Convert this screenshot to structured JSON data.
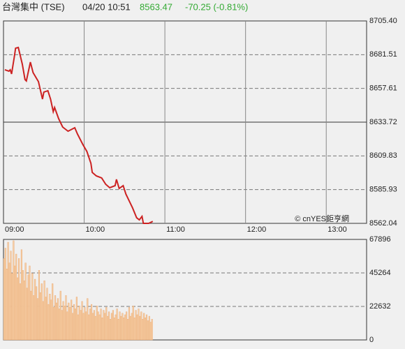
{
  "header": {
    "name": "台灣集中 (TSE)",
    "time": "04/20 10:51",
    "price": "8563.47",
    "change": "-70.25 (-0.81%)"
  },
  "watermark": "© cnYES鉅亨網",
  "chart_data": [
    {
      "type": "line",
      "color": "#cc2222",
      "reference": 8633.72,
      "xlim": [
        0,
        270
      ],
      "xticks": [
        {
          "value": 0,
          "label": "09:00"
        },
        {
          "value": 60,
          "label": "10:00"
        },
        {
          "value": 120,
          "label": "11:00"
        },
        {
          "value": 180,
          "label": "12:00"
        },
        {
          "value": 240,
          "label": "13:00"
        }
      ],
      "ylim": [
        8562.04,
        8705.4
      ],
      "yticks": [
        8562.04,
        8585.93,
        8609.83,
        8633.72,
        8657.61,
        8681.51,
        {
          "value": 8705.4,
          "label": "8705.40"
        }
      ],
      "x": [
        1,
        4,
        5,
        6,
        8,
        9,
        11,
        14,
        16,
        17,
        20,
        22,
        26,
        29,
        30,
        33,
        35,
        37,
        38,
        41,
        44,
        48,
        51,
        53,
        55,
        59,
        62,
        65,
        66,
        69,
        73,
        76,
        79,
        83,
        84,
        86,
        89,
        91,
        94,
        96,
        99,
        101,
        103,
        104,
        108,
        111
      ],
      "values": [
        8670.8,
        8669.81,
        8670.8,
        8667.83,
        8679.7,
        8686.12,
        8686.62,
        8674.75,
        8663.88,
        8662.89,
        8676.24,
        8668.82,
        8662.4,
        8650.04,
        8654.98,
        8655.97,
        8650.04,
        8641.14,
        8644.11,
        8636.2,
        8630.27,
        8627.3,
        8628.78,
        8629.77,
        8625.32,
        8617.91,
        8612.97,
        8604.56,
        8598.14,
        8595.67,
        8594.18,
        8589.73,
        8587.26,
        8588.74,
        8593.19,
        8586.77,
        8588.74,
        8582.81,
        8576.88,
        8572.93,
        8566.01,
        8564.52,
        8567.0,
        8562.04,
        8562.04,
        8563.47
      ]
    },
    {
      "type": "bar",
      "color": "#f6cfa6",
      "xlim": [
        0,
        270
      ],
      "ylim": [
        0,
        67896
      ],
      "yticks": [
        0,
        22632,
        45264,
        67896
      ],
      "x": [
        0,
        1,
        2,
        3,
        4,
        5,
        6,
        7,
        8,
        9,
        10,
        11,
        12,
        13,
        14,
        15,
        16,
        17,
        18,
        19,
        20,
        21,
        22,
        23,
        24,
        25,
        26,
        27,
        28,
        29,
        30,
        31,
        32,
        33,
        34,
        35,
        36,
        37,
        38,
        39,
        40,
        41,
        42,
        43,
        44,
        45,
        46,
        47,
        48,
        49,
        50,
        51,
        52,
        53,
        54,
        55,
        56,
        57,
        58,
        59,
        60,
        61,
        62,
        63,
        64,
        65,
        66,
        67,
        68,
        69,
        70,
        71,
        72,
        73,
        74,
        75,
        76,
        77,
        78,
        79,
        80,
        81,
        82,
        83,
        84,
        85,
        86,
        87,
        88,
        89,
        90,
        91,
        92,
        93,
        94,
        95,
        96,
        97,
        98,
        99,
        100,
        101,
        102,
        103,
        104,
        105,
        106,
        107,
        108,
        109,
        110
      ],
      "values": [
        55000,
        62000,
        48000,
        66000,
        52000,
        60000,
        45000,
        67000,
        50000,
        58000,
        42000,
        55000,
        38000,
        61000,
        47000,
        40000,
        52000,
        35000,
        44000,
        50000,
        33000,
        45000,
        30000,
        41000,
        36000,
        28000,
        47000,
        32000,
        38000,
        26000,
        40000,
        29000,
        35000,
        24000,
        31000,
        27000,
        38000,
        22000,
        30000,
        25000,
        28000,
        21000,
        33000,
        20000,
        26000,
        23000,
        30000,
        19000,
        25000,
        22000,
        27000,
        18000,
        24000,
        21000,
        29000,
        17000,
        23000,
        20000,
        26000,
        18000,
        22000,
        19000,
        28000,
        17000,
        21000,
        24000,
        18000,
        20000,
        16000,
        23000,
        19000,
        17000,
        21000,
        15000,
        20000,
        18000,
        22000,
        16000,
        19000,
        14000,
        18000,
        20000,
        15000,
        17000,
        21000,
        14000,
        19000,
        16000,
        18000,
        15000,
        17000,
        19000,
        14000,
        22000,
        16000,
        18000,
        23000,
        15000,
        20000,
        17000,
        21000,
        16000,
        19000,
        14000,
        18000,
        15000,
        17000,
        13000,
        16000,
        12000,
        14000
      ]
    }
  ]
}
